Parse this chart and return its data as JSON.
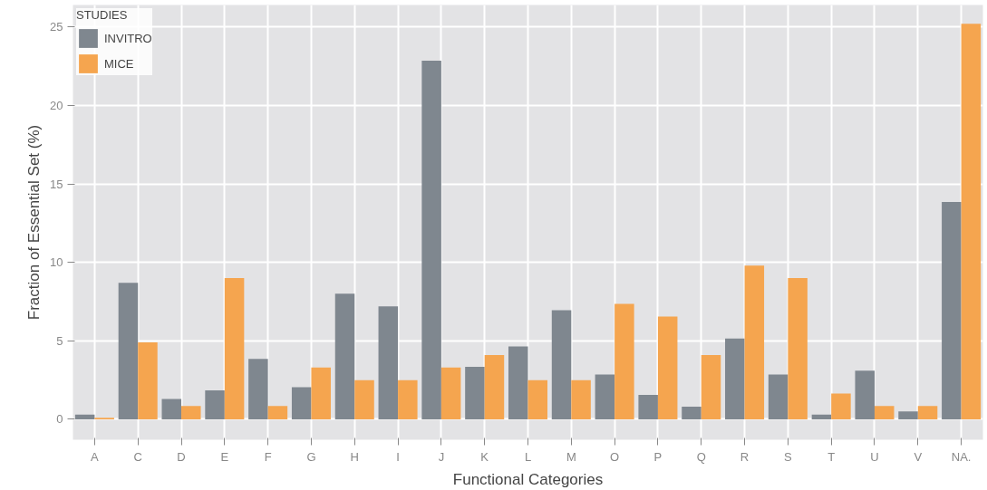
{
  "chart_data": {
    "type": "bar",
    "xlabel": "Functional Categories",
    "ylabel": "Fraction of Essential Set (%)",
    "legend_title": "STUDIES",
    "categories": [
      "A",
      "C",
      "D",
      "E",
      "F",
      "G",
      "H",
      "I",
      "J",
      "K",
      "L",
      "M",
      "O",
      "P",
      "Q",
      "R",
      "S",
      "T",
      "U",
      "V",
      "NA."
    ],
    "series": [
      {
        "name": "INVITRO",
        "color": "#7f878f",
        "values": [
          0.3,
          8.7,
          1.3,
          1.85,
          3.85,
          2.05,
          8.0,
          7.2,
          22.85,
          3.35,
          4.65,
          6.95,
          2.85,
          1.55,
          0.8,
          5.15,
          2.85,
          0.3,
          3.1,
          0.5,
          13.85
        ]
      },
      {
        "name": "MICE",
        "color": "#f5a54f",
        "values": [
          0.1,
          4.9,
          0.85,
          9.0,
          0.85,
          3.3,
          2.5,
          2.5,
          3.3,
          4.1,
          2.5,
          2.5,
          7.35,
          6.55,
          4.1,
          9.8,
          9.0,
          1.65,
          0.85,
          0.85,
          25.2
        ]
      }
    ],
    "ylim": [
      -1.3,
      26.4
    ],
    "yticks": [
      0,
      5,
      10,
      15,
      20,
      25
    ],
    "grid": true,
    "legend": "top left"
  }
}
